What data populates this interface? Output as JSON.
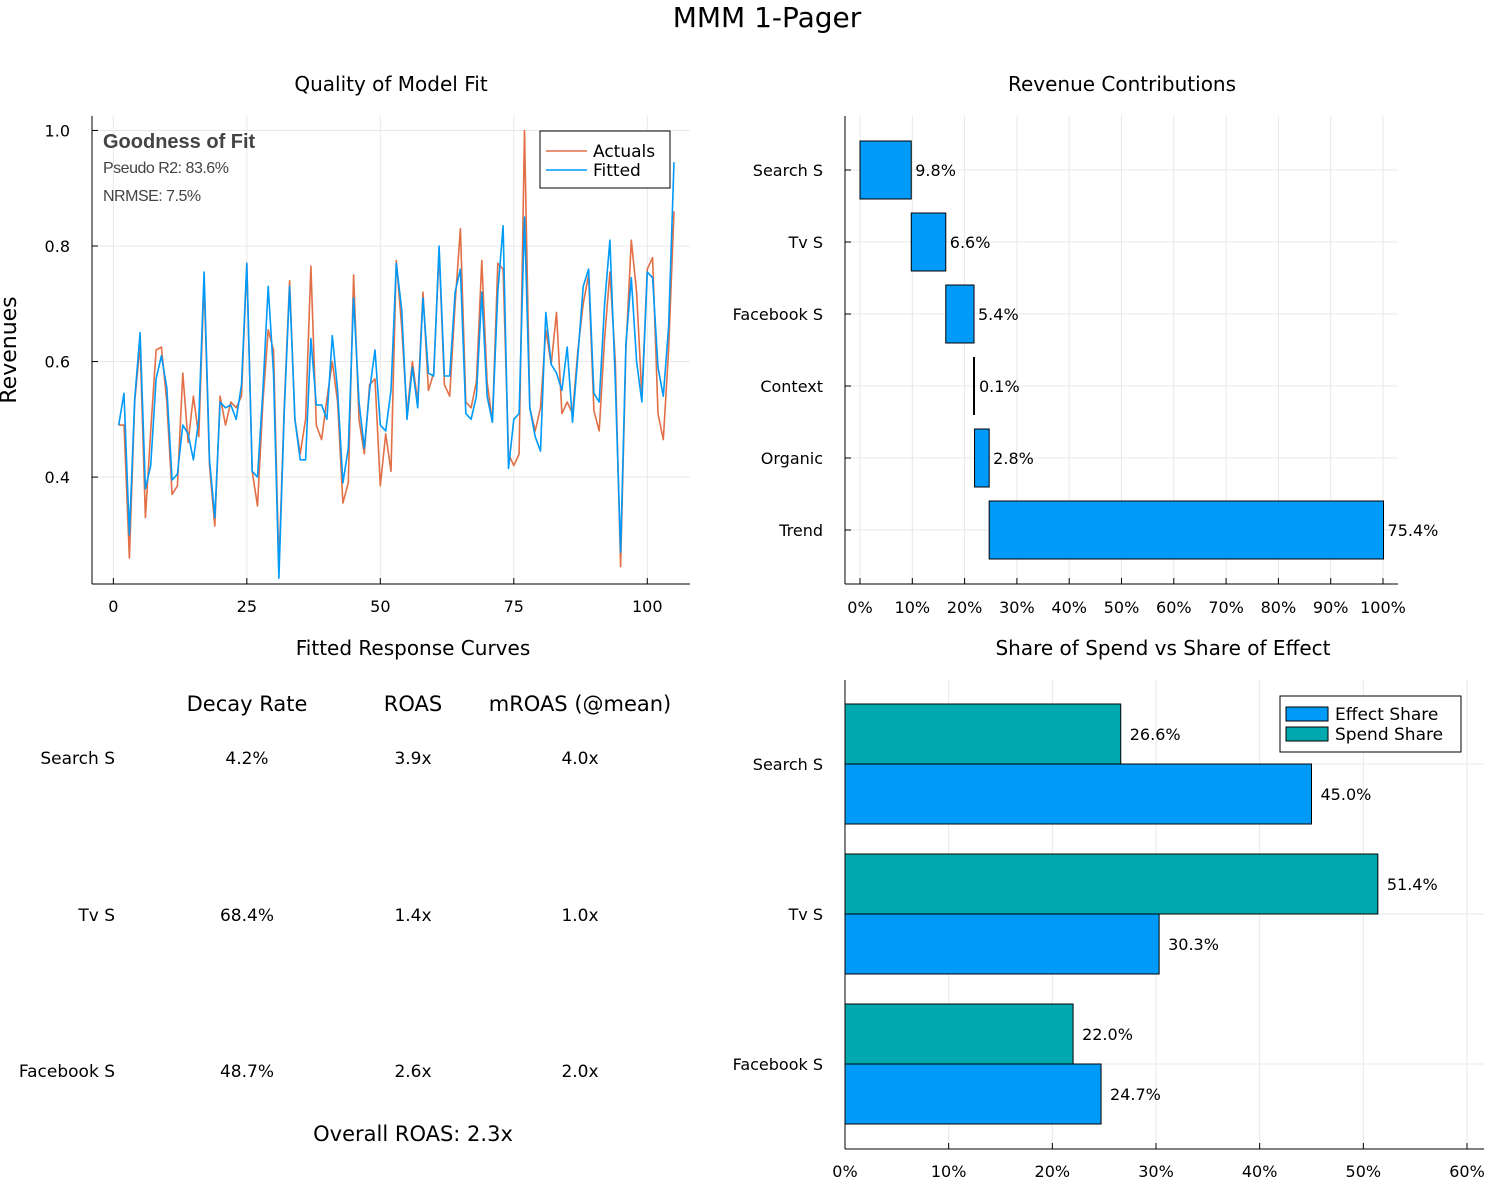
{
  "page_title": "MMM 1-Pager",
  "colors": {
    "actuals": "#e26f46",
    "fitted": "#009af9",
    "effect": "#009af9",
    "spend": "#00a9ad",
    "axis": "#000000",
    "grid": "#e8e8e8"
  },
  "chart_data": [
    {
      "type": "line",
      "title": "Quality of Model Fit",
      "xlabel": "",
      "ylabel": "Revenues",
      "xlim": [
        -4,
        108
      ],
      "ylim": [
        0.215,
        1.025
      ],
      "xticks": [
        0,
        25,
        50,
        75,
        100
      ],
      "yticks": [
        0.4,
        0.6,
        0.8,
        1.0
      ],
      "ytick_labels": [
        "0.4",
        "0.6",
        "0.8",
        "1.0"
      ],
      "grid": true,
      "legend_position": "top-right",
      "annotation": {
        "heading": "Goodness of Fit",
        "lines": [
          "Pseudo R2: 83.6%",
          "NRMSE: 7.5%"
        ]
      },
      "series": [
        {
          "name": "Actuals",
          "color": "#e26f46",
          "y": [
            0.49,
            0.49,
            0.26,
            0.53,
            0.63,
            0.33,
            0.48,
            0.62,
            0.625,
            0.53,
            0.37,
            0.385,
            0.58,
            0.46,
            0.54,
            0.47,
            0.74,
            0.42,
            0.315,
            0.54,
            0.49,
            0.53,
            0.52,
            0.54,
            0.77,
            0.41,
            0.35,
            0.53,
            0.655,
            0.62,
            0.245,
            0.52,
            0.74,
            0.5,
            0.44,
            0.5,
            0.765,
            0.49,
            0.465,
            0.535,
            0.6,
            0.53,
            0.355,
            0.39,
            0.75,
            0.5,
            0.44,
            0.56,
            0.57,
            0.385,
            0.475,
            0.41,
            0.775,
            0.66,
            0.51,
            0.6,
            0.53,
            0.72,
            0.55,
            0.58,
            0.79,
            0.56,
            0.54,
            0.7,
            0.83,
            0.53,
            0.52,
            0.565,
            0.775,
            0.565,
            0.495,
            0.77,
            0.76,
            0.44,
            0.42,
            0.44,
            1.0,
            0.52,
            0.48,
            0.52,
            0.655,
            0.595,
            0.685,
            0.51,
            0.53,
            0.51,
            0.62,
            0.7,
            0.75,
            0.515,
            0.48,
            0.64,
            0.755,
            0.6,
            0.245,
            0.62,
            0.81,
            0.72,
            0.54,
            0.76,
            0.78,
            0.51,
            0.465,
            0.62,
            0.86
          ]
        },
        {
          "name": "Fitted",
          "color": "#009af9",
          "y": [
            0.49,
            0.545,
            0.3,
            0.535,
            0.65,
            0.38,
            0.42,
            0.57,
            0.61,
            0.555,
            0.395,
            0.405,
            0.49,
            0.475,
            0.43,
            0.5,
            0.755,
            0.43,
            0.33,
            0.53,
            0.52,
            0.525,
            0.5,
            0.56,
            0.77,
            0.41,
            0.4,
            0.55,
            0.73,
            0.58,
            0.225,
            0.51,
            0.73,
            0.5,
            0.43,
            0.43,
            0.64,
            0.525,
            0.525,
            0.5,
            0.645,
            0.55,
            0.39,
            0.45,
            0.71,
            0.53,
            0.45,
            0.55,
            0.62,
            0.49,
            0.48,
            0.55,
            0.77,
            0.69,
            0.5,
            0.59,
            0.52,
            0.71,
            0.58,
            0.575,
            0.8,
            0.575,
            0.575,
            0.72,
            0.76,
            0.51,
            0.5,
            0.54,
            0.72,
            0.54,
            0.495,
            0.72,
            0.835,
            0.415,
            0.5,
            0.51,
            0.85,
            0.52,
            0.47,
            0.445,
            0.685,
            0.595,
            0.58,
            0.55,
            0.625,
            0.495,
            0.61,
            0.73,
            0.76,
            0.545,
            0.53,
            0.7,
            0.81,
            0.565,
            0.27,
            0.63,
            0.745,
            0.6,
            0.53,
            0.755,
            0.745,
            0.59,
            0.54,
            0.66,
            0.945
          ]
        }
      ]
    },
    {
      "type": "bar",
      "orientation": "horizontal-waterfall",
      "title": "Revenue Contributions",
      "xlim": [
        0,
        100
      ],
      "xticks": [
        0,
        10,
        20,
        30,
        40,
        50,
        60,
        70,
        80,
        90,
        100
      ],
      "xtick_labels": [
        "0%",
        "10%",
        "20%",
        "30%",
        "40%",
        "50%",
        "60%",
        "70%",
        "80%",
        "90%",
        "100%"
      ],
      "grid": true,
      "color": "#009af9",
      "categories": [
        "Search S",
        "Tv S",
        "Facebook S",
        "Context",
        "Organic",
        "Trend"
      ],
      "values": [
        9.8,
        6.6,
        5.4,
        0.1,
        2.8,
        75.4
      ],
      "labels": [
        "9.8%",
        "6.6%",
        "5.4%",
        "0.1%",
        "2.8%",
        "75.4%"
      ]
    },
    {
      "type": "table",
      "title": "Fitted Response Curves",
      "columns": [
        "Decay Rate",
        "ROAS",
        "mROAS (@mean)"
      ],
      "rows": [
        {
          "label": "Search S",
          "cells": [
            "4.2%",
            "3.9x",
            "4.0x"
          ]
        },
        {
          "label": "Tv S",
          "cells": [
            "68.4%",
            "1.4x",
            "1.0x"
          ]
        },
        {
          "label": "Facebook S",
          "cells": [
            "48.7%",
            "2.6x",
            "2.0x"
          ]
        }
      ],
      "footer": "Overall ROAS: 2.3x"
    },
    {
      "type": "bar",
      "orientation": "horizontal-grouped",
      "title": "Share of Spend vs Share of Effect",
      "xlim": [
        0,
        61
      ],
      "xticks": [
        0,
        10,
        20,
        30,
        40,
        50,
        60
      ],
      "xtick_labels": [
        "0%",
        "10%",
        "20%",
        "30%",
        "40%",
        "50%",
        "60%"
      ],
      "grid": true,
      "legend_position": "top-right",
      "categories": [
        "Search S",
        "Tv S",
        "Facebook S"
      ],
      "series": [
        {
          "name": "Effect Share",
          "color": "#009af9",
          "values": [
            45.0,
            30.3,
            24.7
          ],
          "labels": [
            "45.0%",
            "30.3%",
            "24.7%"
          ]
        },
        {
          "name": "Spend Share",
          "color": "#00a9ad",
          "values": [
            26.6,
            51.4,
            22.0
          ],
          "labels": [
            "26.6%",
            "51.4%",
            "22.0%"
          ]
        }
      ]
    }
  ]
}
